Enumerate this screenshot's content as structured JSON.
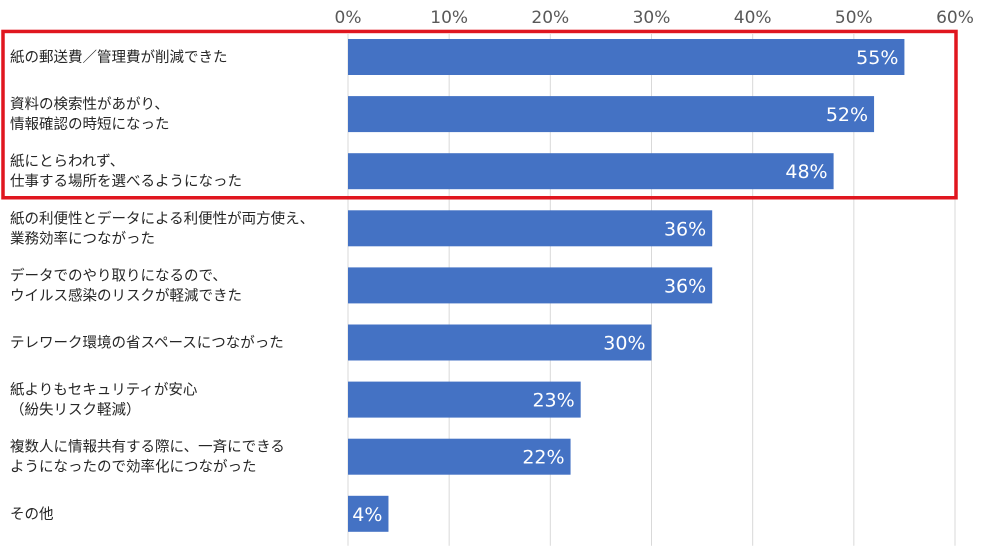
{
  "chart_data": {
    "type": "bar",
    "orientation": "horizontal",
    "categories": [
      [
        "紙の郵送費／管理費が削減できた"
      ],
      [
        "資料の検索性があがり、",
        "情報確認の時短になった"
      ],
      [
        "紙にとらわれず、",
        "仕事する場所を選べるようになった"
      ],
      [
        "紙の利便性とデータによる利便性が両方使え、",
        "業務効率につながった"
      ],
      [
        "データでのやり取りになるので、",
        "ウイルス感染のリスクが軽減できた"
      ],
      [
        "テレワーク環境の省スペースにつながった"
      ],
      [
        "紙よりもセキュリティが安心",
        "（紛失リスク軽減）"
      ],
      [
        "複数人に情報共有する際に、一斉にできる",
        "ようになったので効率化につながった"
      ],
      [
        "その他"
      ]
    ],
    "values": [
      55,
      52,
      48,
      36,
      36,
      30,
      23,
      22,
      4
    ],
    "data_labels": [
      "55%",
      "52%",
      "48%",
      "36%",
      "36%",
      "30%",
      "23%",
      "22%",
      "4%"
    ],
    "x_ticks": [
      "0%",
      "10%",
      "20%",
      "30%",
      "40%",
      "50%",
      "60%"
    ],
    "xlim": [
      0,
      60
    ],
    "x_axis_position": "top",
    "grid": "vertical",
    "highlight": {
      "categories_index": [
        0,
        1,
        2
      ],
      "color": "#e0161f"
    },
    "bar_color": "#4472c4",
    "title": "",
    "xlabel": "",
    "ylabel": ""
  }
}
